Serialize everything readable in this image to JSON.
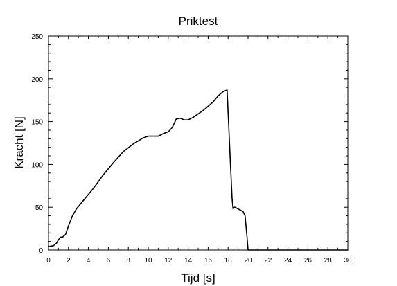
{
  "chart_data": {
    "type": "line",
    "title": "Priktest",
    "xlabel": "Tijd [s]",
    "ylabel": "Kracht [N]",
    "xlim": [
      0,
      30
    ],
    "ylim": [
      0,
      250
    ],
    "xticks": [
      0,
      2,
      4,
      6,
      8,
      10,
      12,
      14,
      16,
      18,
      20,
      22,
      24,
      26,
      28,
      30
    ],
    "yticks": [
      0,
      50,
      100,
      150,
      200,
      250
    ],
    "x_tick_labels": [
      "0",
      "2",
      "4",
      "6",
      "8",
      "10",
      "12",
      "14",
      "16",
      "18",
      "20",
      "22",
      "24",
      "26",
      "28",
      "30"
    ],
    "y_tick_labels": [
      "0",
      "50",
      "100",
      "150",
      "200",
      "250"
    ],
    "grid": false,
    "series": [
      {
        "color": "#000000",
        "x": [
          0,
          0.5,
          0.8,
          1.0,
          1.2,
          1.4,
          1.7,
          2.0,
          2.4,
          2.8,
          3.5,
          4.5,
          5.5,
          6.5,
          7.5,
          8.5,
          9.5,
          10.0,
          11.0,
          11.5,
          12.0,
          12.4,
          12.8,
          13.2,
          13.6,
          14.0,
          14.5,
          15.0,
          15.5,
          16.0,
          16.5,
          17.0,
          17.5,
          17.9,
          18.2,
          18.4,
          18.5,
          18.6,
          18.7,
          19.0,
          19.5,
          19.7,
          19.9,
          20.0,
          21.0,
          25.0,
          30.0
        ],
        "y": [
          4,
          5,
          8,
          12,
          15,
          15,
          18,
          28,
          40,
          48,
          58,
          72,
          88,
          102,
          115,
          124,
          131,
          133,
          133,
          136,
          138,
          143,
          153,
          154,
          152,
          152,
          155,
          159,
          163,
          168,
          173,
          180,
          185,
          187,
          110,
          60,
          48,
          50,
          50,
          48,
          45,
          40,
          15,
          0,
          0,
          0,
          0
        ]
      }
    ]
  }
}
